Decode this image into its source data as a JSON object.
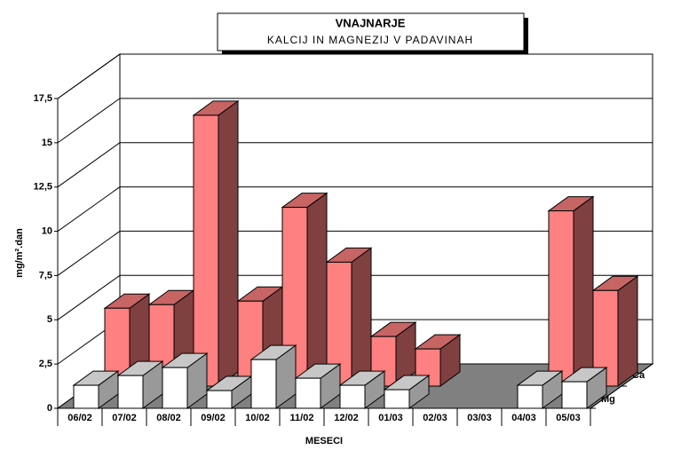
{
  "chart_data": {
    "type": "bar3d",
    "title": "VNAJNARJE",
    "subtitle": "KALCIJ IN MAGNEZIJ V PADAVINAH",
    "y_label": "mg/m².dan",
    "x_label": "MESECI",
    "categories": [
      "06/02",
      "07/02",
      "08/02",
      "09/02",
      "10/02",
      "11/02",
      "12/02",
      "01/03",
      "02/03",
      "03/03",
      "04/03",
      "05/03"
    ],
    "series": [
      {
        "name": "Ca",
        "color": "#ff8080",
        "values": [
          4.4,
          4.6,
          15.3,
          4.8,
          10.1,
          7.0,
          2.8,
          2.1,
          null,
          null,
          9.9,
          5.4
        ]
      },
      {
        "name": "Mg",
        "color": "#ffffff",
        "values": [
          1.3,
          1.85,
          2.3,
          1.0,
          2.75,
          1.7,
          1.3,
          1.05,
          null,
          null,
          1.3,
          1.5
        ]
      }
    ],
    "ylim": [
      0,
      17.5
    ],
    "yticks": [
      0,
      {
        "value": 2.5,
        "label": "2,5"
      },
      5,
      {
        "value": 7.5,
        "label": "7,5"
      },
      10,
      {
        "value": 12.5,
        "label": "12,5"
      },
      15,
      {
        "value": 17.5,
        "label": "17,5"
      }
    ],
    "grid": true
  }
}
